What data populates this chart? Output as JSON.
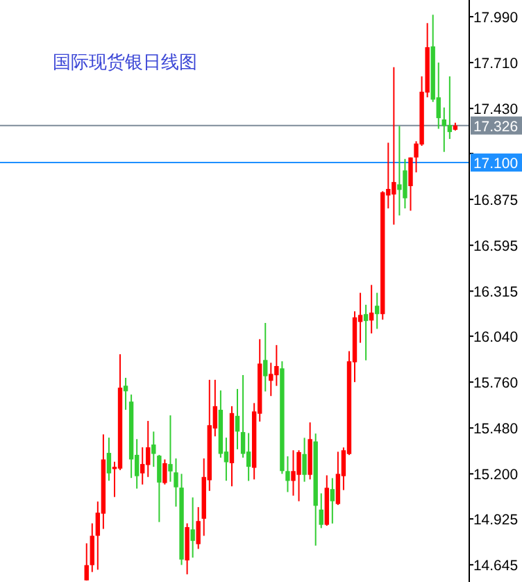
{
  "chart_data": {
    "type": "candlestick",
    "title": "国际现货银日线图",
    "categories": [
      null,
      null,
      null,
      null,
      null,
      null,
      null,
      null,
      null,
      null,
      null,
      null,
      null,
      null,
      null,
      null,
      null,
      null,
      null,
      null,
      null,
      null,
      null,
      null,
      null,
      null,
      null,
      null,
      null,
      null,
      null,
      null,
      null,
      null,
      null,
      null,
      null,
      null,
      null,
      null,
      null,
      null,
      null,
      null,
      null,
      null,
      null,
      null,
      null,
      null,
      null,
      null,
      null,
      null,
      null,
      null,
      null,
      null,
      null,
      null,
      null,
      null,
      null,
      null,
      null,
      null,
      null,
      null,
      null,
      null,
      null,
      null,
      null,
      null,
      null,
      null,
      null,
      null,
      null,
      null,
      null,
      null,
      null,
      null
    ],
    "ohlc": [
      null,
      null,
      null,
      null,
      null,
      null,
      null,
      null,
      null,
      null,
      null,
      null,
      null,
      null,
      null,
      [
        14.55,
        14.776,
        14.55,
        14.643
      ],
      [
        14.643,
        14.898,
        14.601,
        14.822
      ],
      [
        14.822,
        15.031,
        14.615,
        14.963
      ],
      [
        14.957,
        15.441,
        14.864,
        15.288
      ],
      [
        15.328,
        15.421,
        15.158,
        15.203
      ],
      [
        15.229,
        15.274,
        15.059,
        15.243
      ],
      [
        15.232,
        15.93,
        15.223,
        15.726
      ],
      [
        15.738,
        15.786,
        15.591,
        15.704
      ],
      [
        15.641,
        15.684,
        15.175,
        15.288
      ],
      [
        15.316,
        15.412,
        15.11,
        15.186
      ],
      [
        15.203,
        15.362,
        15.135,
        15.26
      ],
      [
        15.254,
        15.523,
        15.181,
        15.362
      ],
      [
        15.379,
        15.458,
        15.243,
        15.322
      ],
      [
        15.311,
        15.316,
        14.906,
        15.147
      ],
      [
        15.144,
        15.288,
        15.135,
        15.265
      ],
      [
        15.26,
        15.557,
        15.152,
        15.215
      ],
      [
        15.209,
        15.294,
        15.0,
        15.118
      ],
      [
        15.116,
        15.2,
        14.644,
        14.677
      ],
      [
        14.672,
        14.898,
        14.587,
        14.875
      ],
      [
        14.861,
        15.056,
        14.689,
        14.791
      ],
      [
        14.771,
        14.997,
        14.742,
        14.912
      ],
      [
        14.926,
        15.294,
        14.822,
        15.181
      ],
      [
        15.161,
        15.774,
        15.096,
        15.497
      ],
      [
        15.477,
        15.774,
        15.429,
        15.613
      ],
      [
        15.591,
        15.709,
        15.299,
        15.322
      ],
      [
        15.336,
        15.421,
        15.158,
        15.271
      ],
      [
        15.265,
        15.613,
        15.124,
        15.571
      ],
      [
        15.554,
        15.718,
        15.35,
        15.458
      ],
      [
        15.455,
        15.803,
        15.299,
        15.322
      ],
      [
        15.336,
        15.449,
        15.157,
        15.243
      ],
      [
        15.237,
        15.632,
        15.166,
        15.581
      ],
      [
        15.567,
        16.022,
        15.519,
        15.873
      ],
      [
        15.895,
        16.121,
        15.703,
        15.796
      ],
      [
        15.768,
        15.878,
        15.675,
        15.81
      ],
      [
        15.802,
        15.986,
        15.737,
        15.858
      ],
      [
        15.844,
        15.887,
        15.2,
        15.217
      ],
      [
        15.217,
        15.307,
        15.089,
        15.157
      ],
      [
        15.157,
        15.344,
        15.067,
        15.217
      ],
      [
        15.194,
        15.344,
        15.033,
        15.333
      ],
      [
        15.321,
        15.42,
        15.152,
        15.194
      ],
      [
        15.194,
        15.514,
        15.166,
        15.412
      ],
      [
        15.398,
        15.446,
        14.762,
        15.005
      ],
      [
        14.982,
        15.081,
        14.869,
        14.889
      ],
      [
        14.889,
        15.191,
        14.883,
        15.115
      ],
      [
        15.107,
        15.174,
        14.897,
        15.033
      ],
      [
        15.016,
        15.335,
        15.01,
        15.2
      ],
      [
        15.186,
        15.361,
        15.101,
        15.344
      ],
      [
        15.321,
        15.949,
        15.315,
        15.887
      ],
      [
        15.881,
        16.192,
        15.76,
        16.155
      ],
      [
        16.127,
        16.305,
        16.0,
        16.17
      ],
      [
        16.175,
        16.232,
        15.893,
        16.133
      ],
      [
        16.136,
        16.353,
        16.057,
        16.184
      ],
      [
        16.226,
        16.305,
        16.085,
        16.175
      ],
      [
        16.175,
        16.925,
        16.141,
        16.919
      ],
      [
        16.899,
        17.221,
        16.82,
        16.939
      ],
      [
        16.905,
        17.682,
        16.721,
        16.981
      ],
      [
        16.967,
        17.323,
        16.777,
        16.933
      ],
      [
        17.052,
        17.122,
        16.82,
        16.882
      ],
      [
        16.956,
        17.131,
        16.806,
        17.131
      ],
      [
        17.131,
        17.23,
        17.04,
        17.216
      ],
      [
        17.21,
        17.626,
        17.202,
        17.532
      ],
      [
        17.527,
        17.951,
        17.498,
        17.804
      ],
      [
        17.809,
        18.002,
        17.47,
        17.484
      ],
      [
        17.498,
        17.71,
        17.306,
        17.371
      ],
      [
        17.363,
        17.436,
        17.165,
        17.323
      ],
      [
        17.329,
        17.626,
        17.244,
        17.286
      ],
      [
        17.3,
        17.343,
        17.295,
        17.326
      ],
      null,
      null
    ],
    "colors": [
      null,
      null,
      null,
      null,
      null,
      null,
      null,
      null,
      null,
      null,
      null,
      null,
      null,
      null,
      null,
      "#ff0000",
      "#ff0000",
      "#ff0000",
      "#ff0000",
      "#32cd32",
      "#ff0000",
      "#ff0000",
      "#32cd32",
      "#32cd32",
      "#32cd32",
      "#ff0000",
      "#ff0000",
      "#32cd32",
      "#32cd32",
      "#ff0000",
      "#32cd32",
      "#32cd32",
      "#32cd32",
      "#ff0000",
      "#32cd32",
      "#ff0000",
      "#ff0000",
      "#ff0000",
      "#ff0000",
      "#32cd32",
      "#32cd32",
      "#ff0000",
      "#32cd32",
      "#32cd32",
      "#32cd32",
      "#ff0000",
      "#ff0000",
      "#32cd32",
      "#ff0000",
      "#ff0000",
      "#32cd32",
      "#32cd32",
      "#ff0000",
      "#ff0000",
      "#32cd32",
      "#ff0000",
      "#32cd32",
      "#32cd32",
      "#ff0000",
      "#32cd32",
      "#ff0000",
      "#ff0000",
      "#ff0000",
      "#ff0000",
      "#ff0000",
      "#32cd32",
      "#ff0000",
      "#32cd32",
      "#ff0000",
      "#ff0000",
      "#ff0000",
      "#32cd32",
      "#32cd32",
      "#ff0000",
      "#ff0000",
      "#ff0000",
      "#ff0000",
      "#32cd32",
      "#32cd32",
      "#32cd32",
      "#32cd32",
      "#ff0000",
      null,
      null
    ],
    "ylim": [
      14.54,
      18.092
    ],
    "yticks": [
      {
        "value": 17.99,
        "label": "17.990"
      },
      {
        "value": 17.71,
        "label": "17.710"
      },
      {
        "value": 17.43,
        "label": "17.430"
      },
      {
        "value": 17.155,
        "label": null
      },
      {
        "value": 16.875,
        "label": "16.875"
      },
      {
        "value": 16.595,
        "label": "16.595"
      },
      {
        "value": 16.315,
        "label": "16.315"
      },
      {
        "value": 16.04,
        "label": "16.040"
      },
      {
        "value": 15.76,
        "label": "15.760"
      },
      {
        "value": 15.48,
        "label": "15.480"
      },
      {
        "value": 15.2,
        "label": "15.200"
      },
      {
        "value": 14.925,
        "label": "14.925"
      },
      {
        "value": 14.645,
        "label": "14.645"
      }
    ],
    "tick_labels": "y",
    "ref_lines": [
      {
        "axis": "y",
        "value": 17.326,
        "label": "17.326",
        "color": "#7d8b99"
      },
      {
        "axis": "y",
        "value": 17.1,
        "label": "17.100",
        "color": "#1e90ff"
      }
    ]
  }
}
